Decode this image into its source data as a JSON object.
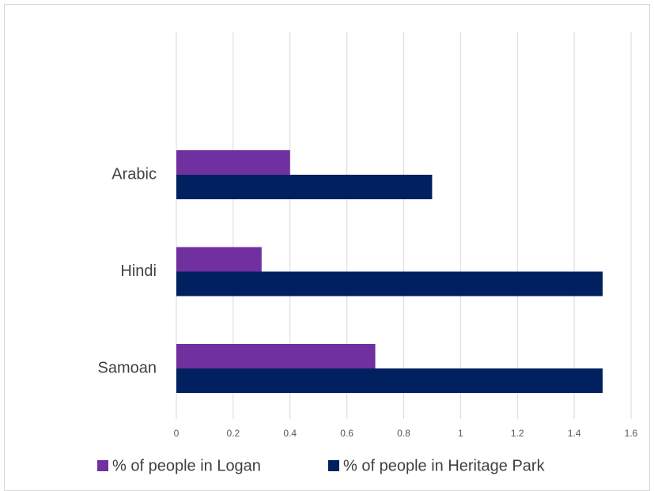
{
  "chart_data": {
    "type": "hbar",
    "categories": [
      "Arabic",
      "Hindi",
      "Samoan"
    ],
    "series": [
      {
        "name": "% of people in Logan",
        "color": "#7030a0",
        "values": [
          0.4,
          0.3,
          0.7
        ]
      },
      {
        "name": "% of people in Heritage Park",
        "color": "#002060",
        "values": [
          0.9,
          1.5,
          1.5
        ]
      }
    ],
    "xlim": [
      0,
      1.6
    ],
    "xticks": [
      0,
      0.2,
      0.4,
      0.6,
      0.8,
      1,
      1.2,
      1.4,
      1.6
    ],
    "grid": true,
    "legend": "bottom"
  }
}
